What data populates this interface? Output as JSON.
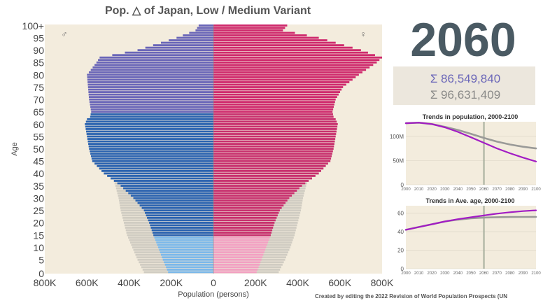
{
  "chart_data": [
    {
      "type": "bar",
      "subtype": "population-pyramid",
      "title": "Pop. △ of Japan, Low / Medium Variant",
      "xlabel": "Population (persons)",
      "ylabel": "Age",
      "year": "2060",
      "male_symbol": "♂",
      "female_symbol": "♀",
      "x_ticks_left": [
        "800K",
        "600K",
        "400K",
        "200K",
        "0"
      ],
      "x_ticks_right": [
        "200K",
        "400K",
        "600K",
        "800K"
      ],
      "y_ticks": [
        "0",
        "5",
        "10",
        "15",
        "20",
        "25",
        "30",
        "35",
        "40",
        "45",
        "50",
        "55",
        "60",
        "65",
        "70",
        "75",
        "80",
        "85",
        "90",
        "95",
        "100+"
      ],
      "xlim": [
        -800000,
        800000
      ],
      "age_anchors": [
        0,
        5,
        10,
        15,
        20,
        25,
        30,
        35,
        40,
        45,
        50,
        55,
        60,
        62,
        63,
        65,
        70,
        75,
        80,
        85,
        87,
        90,
        95,
        98,
        100
      ],
      "series": [
        {
          "name": "Male, Low Variant",
          "values": [
            215000,
            240000,
            262000,
            285000,
            305000,
            330000,
            380000,
            440000,
            520000,
            575000,
            590000,
            600000,
            610000,
            600000,
            585000,
            580000,
            590000,
            595000,
            600000,
            555000,
            540000,
            360000,
            175000,
            85000,
            70000
          ]
        },
        {
          "name": "Male, Medium Variant",
          "values": [
            330000,
            360000,
            385000,
            410000,
            425000,
            440000,
            450000,
            465000,
            485000,
            0,
            0,
            0,
            0,
            0,
            0,
            0,
            0,
            0,
            0,
            0,
            0,
            0,
            0,
            0,
            0
          ]
        },
        {
          "name": "Female, Low Variant",
          "values": [
            205000,
            228000,
            250000,
            272000,
            290000,
            315000,
            360000,
            420000,
            500000,
            555000,
            570000,
            580000,
            590000,
            580000,
            570000,
            565000,
            580000,
            615000,
            690000,
            775000,
            800000,
            700000,
            500000,
            330000,
            350000
          ]
        },
        {
          "name": "Female, Medium Variant",
          "values": [
            310000,
            340000,
            365000,
            385000,
            400000,
            415000,
            425000,
            440000,
            465000,
            0,
            0,
            0,
            0,
            0,
            0,
            0,
            0,
            0,
            0,
            0,
            0,
            0,
            0,
            0,
            0
          ]
        }
      ],
      "colors": {
        "background": "#f3ecdd",
        "male_young": "#7bb8ea",
        "male_working": "#2b63b0",
        "male_old": "#6a66b8",
        "female_young": "#f2a0c2",
        "female_working": "#c8306e",
        "female_old": "#cf2a6d",
        "medium": "#d0ccc2"
      }
    },
    {
      "type": "line",
      "title": "Trends in population, 2000-2100",
      "x_ticks": [
        "2000",
        "2010",
        "2020",
        "2030",
        "2040",
        "2050",
        "2060",
        "2070",
        "2080",
        "2090",
        "2100"
      ],
      "y_ticks": [
        "0",
        "50M",
        "100M"
      ],
      "ylim": [
        0,
        130000000
      ],
      "marker_year": 2060,
      "x": [
        2000,
        2010,
        2020,
        2030,
        2040,
        2050,
        2060,
        2070,
        2080,
        2090,
        2100
      ],
      "series": [
        {
          "name": "Low Variant",
          "color": "#a21cc4",
          "values": [
            126900000,
            128100000,
            125200000,
            118500000,
            109000000,
            98000000,
            86549840,
            75000000,
            65000000,
            56000000,
            48000000
          ]
        },
        {
          "name": "Medium Variant",
          "color": "#9a9a98",
          "values": [
            126900000,
            128100000,
            125200000,
            119500000,
            113000000,
            105000000,
            96631409,
            89000000,
            83000000,
            78500000,
            75000000
          ]
        }
      ]
    },
    {
      "type": "line",
      "title": "Trends in Ave. age, 2000-2100",
      "x_ticks": [
        "2000",
        "2010",
        "2020",
        "2030",
        "2040",
        "2050",
        "2060",
        "2070",
        "2080",
        "2090",
        "2100"
      ],
      "y_ticks": [
        "0",
        "20",
        "40",
        "60"
      ],
      "ylim": [
        0,
        68
      ],
      "marker_year": 2060,
      "x": [
        2000,
        2010,
        2020,
        2030,
        2040,
        2050,
        2060,
        2070,
        2080,
        2090,
        2100
      ],
      "series": [
        {
          "name": "Low Variant",
          "color": "#a21cc4",
          "values": [
            42,
            45,
            48,
            51,
            53.5,
            55.5,
            57.5,
            59.5,
            61,
            62.2,
            63
          ]
        },
        {
          "name": "Medium Variant",
          "color": "#9a9a98",
          "values": [
            42,
            45,
            48,
            51,
            53,
            54.5,
            55.2,
            55.6,
            55.8,
            55.9,
            56
          ]
        }
      ]
    }
  ],
  "totals": {
    "low": "Σ 86,549,840",
    "medium": "Σ 96,631,409"
  },
  "credit": "Created by editing the 2022 Revision of World Population Prospects (UN"
}
